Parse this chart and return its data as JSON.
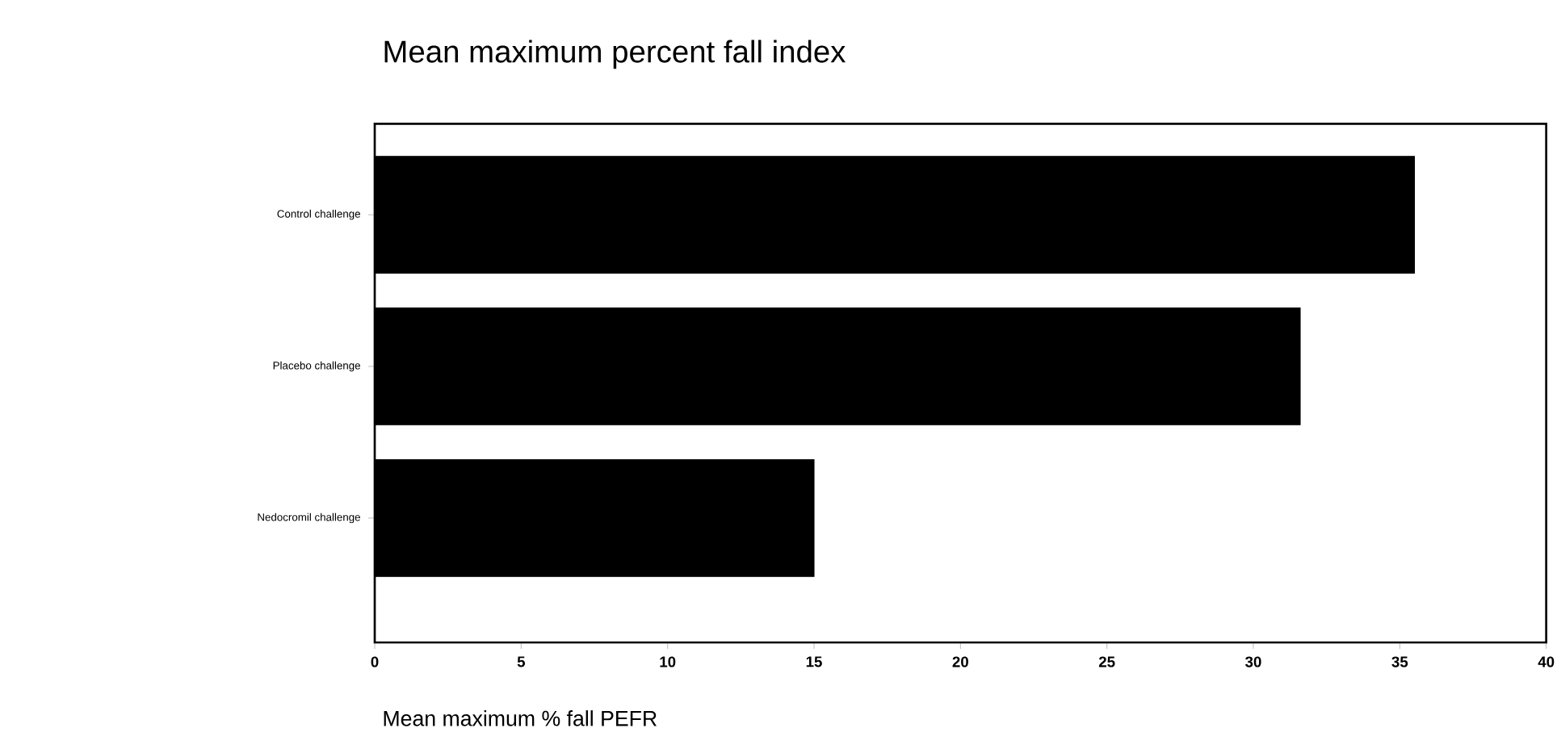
{
  "chart_data": {
    "type": "bar",
    "orientation": "horizontal",
    "title": "Mean maximum percent fall index",
    "xlabel": "Mean maximum % fall PEFR",
    "categories": [
      "Control challenge",
      "Placebo challenge",
      "Nedocromil challenge"
    ],
    "values": [
      35.5,
      31.6,
      15.0
    ],
    "color": "#000000",
    "xlim": [
      0,
      40
    ],
    "xticks": [
      0,
      5,
      10,
      15,
      20,
      25,
      30,
      35,
      40
    ],
    "grid": false
  }
}
